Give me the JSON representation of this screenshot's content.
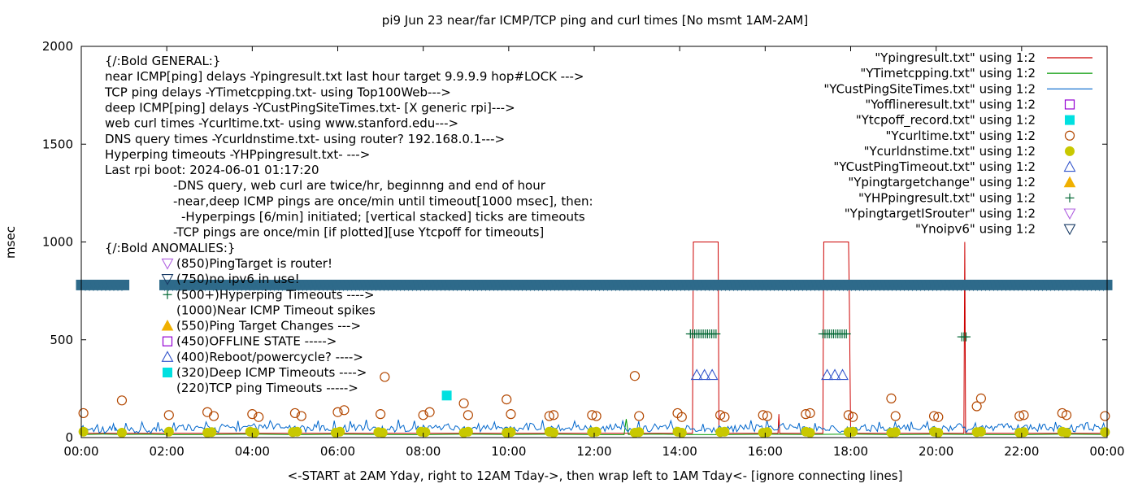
{
  "chart_data": {
    "type": "line",
    "title": "pi9 Jun 23  near/far ICMP/TCP ping and curl times [No msmt 1AM-2AM]",
    "xlabel": "<-START at 2AM Yday, right to 12AM Tday->, then wrap left to 1AM Tday<- [ignore connecting lines]",
    "ylabel": "msec",
    "xlim": [
      0,
      24
    ],
    "ylim": [
      0,
      2000
    ],
    "grid": false,
    "legend_position": "top-right",
    "x_ticks": [
      {
        "v": 0,
        "label": "00:00"
      },
      {
        "v": 2,
        "label": "02:00"
      },
      {
        "v": 4,
        "label": "04:00"
      },
      {
        "v": 6,
        "label": "06:00"
      },
      {
        "v": 8,
        "label": "08:00"
      },
      {
        "v": 10,
        "label": "10:00"
      },
      {
        "v": 12,
        "label": "12:00"
      },
      {
        "v": 14,
        "label": "14:00"
      },
      {
        "v": 16,
        "label": "16:00"
      },
      {
        "v": 18,
        "label": "18:00"
      },
      {
        "v": 20,
        "label": "20:00"
      },
      {
        "v": 22,
        "label": "22:00"
      },
      {
        "v": 24,
        "label": "00:00"
      }
    ],
    "y_ticks": [
      {
        "v": 0,
        "label": "0"
      },
      {
        "v": 500,
        "label": "500"
      },
      {
        "v": 1000,
        "label": "1000"
      },
      {
        "v": 1500,
        "label": "1500"
      },
      {
        "v": 2000,
        "label": "2000"
      }
    ],
    "legend": [
      {
        "label": "\"Ypingresult.txt\" using 1:2",
        "style": "line",
        "color": "#cc0000"
      },
      {
        "label": "\"YTimetcpping.txt\" using 1:2",
        "style": "line",
        "color": "#009900"
      },
      {
        "label": "\"YCustPingSiteTimes.txt\" using 1:2",
        "style": "line",
        "color": "#0066cc"
      },
      {
        "label": "\"Yofflineresult.txt\" using 1:2",
        "style": "open-square",
        "color": "#9400d3"
      },
      {
        "label": "\"Ytcpoff_record.txt\" using 1:2",
        "style": "filled-square",
        "color": "#00e0e0"
      },
      {
        "label": "\"Ycurltime.txt\" using 1:2",
        "style": "open-circle",
        "color": "#b34700"
      },
      {
        "label": "\"Ycurldnstime.txt\" using 1:2",
        "style": "filled-circle",
        "color": "#c8c800"
      },
      {
        "label": "\"YCustPingTimeout.txt\" using 1:2",
        "style": "open-triangle",
        "color": "#3355cc"
      },
      {
        "label": "\"Ypingtargetchange\" using 1:2",
        "style": "filled-triangle",
        "color": "#f0b000"
      },
      {
        "label": "\"YHPpingresult.txt\" using 1:2",
        "style": "plus",
        "color": "#006633"
      },
      {
        "label": "\"YpingtargetISrouter\" using 1:2",
        "style": "open-down-triangle",
        "color": "#b060e0"
      },
      {
        "label": "\"Ynoipv6\" using 1:2",
        "style": "open-down-triangle",
        "color": "#1a3c66"
      }
    ],
    "annotations": [
      "{/:Bold GENERAL:}",
      "near ICMP[ping] delays -Ypingresult.txt last hour target 9.9.9.9 hop#LOCK --->",
      "TCP ping delays -YTimetcpping.txt- using Top100Web--->",
      "deep ICMP[ping] delays -YCustPingSiteTimes.txt- [X generic rpi]--->",
      "web curl times -Ycurltime.txt- using www.stanford.edu--->",
      "DNS query times -Ycurldnstime.txt- using router? 192.168.0.1--->",
      "Hyperping timeouts -YHPpingresult.txt- --->",
      "Last rpi boot: 2024-06-01 01:17:20",
      "-DNS query, web curl are twice/hr, beginnng and end of hour",
      "-near,deep ICMP pings are once/min until timeout[1000 msec], then:",
      "-Hyperpings [6/min] initiated; [vertical stacked] ticks are timeouts",
      "-TCP pings are once/min [if plotted][use Ytcpoff for timeouts]",
      "{/:Bold ANOMALIES:}",
      "(850)PingTarget is router!",
      "(750)no ipv6 in use!",
      "(500+)Hyperping Timeouts ---->",
      "(1000)Near ICMP Timeout spikes",
      "(550)Ping Target Changes --->",
      "(450)OFFLINE STATE ----->",
      "(400)Reboot/powercycle? ---->",
      "(320)Deep ICMP Timeouts ---->",
      "(220)TCP ping Timeouts ----->"
    ],
    "series": [
      {
        "name": "\"Ypingresult.txt\" using 1:2",
        "kind": "line",
        "color": "#cc0000",
        "x": [
          0,
          14.3,
          14.32,
          14.9,
          14.92,
          16.3,
          16.32,
          16.34,
          17.35,
          17.37,
          17.95,
          17.97,
          18.0,
          20.65,
          20.67,
          20.69,
          24
        ],
        "y": [
          22,
          22,
          1000,
          1000,
          22,
          22,
          120,
          22,
          22,
          1000,
          1000,
          700,
          22,
          22,
          1000,
          22,
          22
        ]
      },
      {
        "name": "\"YTimetcpping.txt\" using 1:2",
        "kind": "line",
        "color": "#009900",
        "x": [
          0,
          0.5,
          1.0,
          1.5,
          2.0,
          3.0,
          4.0,
          5.0,
          6.0,
          7.0,
          8.0,
          9.0,
          10.0,
          11.0,
          12.0,
          12.7,
          12.75,
          12.8,
          13.5,
          14.0,
          15.0,
          16.0,
          17.0,
          18.0,
          19.0,
          20.0,
          21.0,
          22.0,
          23.0,
          24.0
        ],
        "y": [
          15,
          18,
          16,
          17,
          15,
          16,
          18,
          15,
          17,
          16,
          15,
          18,
          16,
          17,
          15,
          15,
          95,
          16,
          18,
          16,
          15,
          17,
          16,
          18,
          15,
          17,
          16,
          15,
          18,
          16
        ]
      },
      {
        "name": "\"YCustPingSiteTimes.txt\" using 1:2",
        "kind": "line",
        "color": "#0066cc",
        "x": [
          0,
          0.8,
          0.85,
          1.0,
          2.0,
          2.5,
          3.0,
          3.5,
          4.0,
          4.5,
          5.0,
          5.5,
          6.0,
          6.5,
          7.0,
          7.5,
          8.0,
          8.5,
          9.0,
          9.5,
          10.0,
          10.5,
          11.0,
          11.5,
          12.0,
          12.5,
          13.0,
          13.5,
          14.0,
          15.0,
          15.5,
          16.0,
          16.5,
          17.0,
          18.0,
          18.5,
          19.0,
          19.5,
          20.0,
          20.5,
          21.0,
          21.5,
          22.0,
          22.5,
          23.0,
          23.5,
          24.0
        ],
        "y": [
          45,
          40,
          30,
          30,
          45,
          55,
          40,
          50,
          45,
          55,
          40,
          50,
          45,
          55,
          40,
          50,
          45,
          55,
          40,
          50,
          45,
          55,
          40,
          50,
          45,
          55,
          40,
          50,
          45,
          40,
          50,
          45,
          55,
          40,
          45,
          50,
          40,
          55,
          45,
          50,
          40,
          55,
          45,
          50,
          40,
          55,
          45
        ]
      },
      {
        "name": "\"Ycurltime.txt\" using 1:2",
        "kind": "open-circle",
        "color": "#b34700",
        "x": [
          0.05,
          0.95,
          2.05,
          2.95,
          3.1,
          4.0,
          4.15,
          5.0,
          5.15,
          6.0,
          6.15,
          7.0,
          7.1,
          8.0,
          8.15,
          8.95,
          9.05,
          9.95,
          10.05,
          10.95,
          11.05,
          11.95,
          12.05,
          12.95,
          13.05,
          13.95,
          14.05,
          14.95,
          15.05,
          15.95,
          16.05,
          16.95,
          17.05,
          17.95,
          18.05,
          18.95,
          19.05,
          19.95,
          20.05,
          20.95,
          21.05,
          21.95,
          22.05,
          22.95,
          23.05,
          23.95
        ],
        "y": [
          125,
          190,
          115,
          130,
          110,
          120,
          105,
          125,
          110,
          130,
          140,
          120,
          310,
          115,
          130,
          175,
          115,
          195,
          120,
          110,
          115,
          115,
          110,
          315,
          110,
          125,
          105,
          115,
          105,
          115,
          110,
          120,
          125,
          115,
          105,
          200,
          110,
          110,
          105,
          160,
          200,
          110,
          115,
          125,
          115,
          110
        ]
      },
      {
        "name": "\"Ycurldnstime.txt\" using 1:2",
        "kind": "filled-circle",
        "color": "#c8c800",
        "x": [
          0.05,
          0.95,
          2.05,
          2.95,
          3.05,
          3.95,
          4.05,
          4.95,
          5.05,
          5.95,
          6.05,
          6.95,
          7.05,
          7.95,
          8.05,
          8.95,
          9.05,
          9.95,
          10.05,
          10.95,
          11.05,
          11.95,
          12.05,
          12.95,
          13.05,
          13.95,
          14.05,
          14.95,
          15.05,
          15.95,
          16.05,
          16.95,
          17.05,
          17.95,
          18.05,
          18.95,
          19.05,
          19.95,
          20.05,
          20.95,
          21.05,
          21.95,
          22.05,
          22.95,
          23.05,
          23.95
        ],
        "y": [
          30,
          25,
          30,
          25,
          28,
          30,
          25,
          28,
          30,
          25,
          30,
          28,
          25,
          30,
          28,
          25,
          30,
          25,
          28,
          30,
          25,
          28,
          30,
          25,
          28,
          30,
          25,
          28,
          30,
          25,
          28,
          30,
          25,
          28,
          30,
          25,
          28,
          30,
          25,
          28,
          30,
          25,
          28,
          30,
          25,
          28
        ]
      },
      {
        "name": "\"Ytcpoff_record.txt\" using 1:2",
        "kind": "filled-square",
        "color": "#00e0e0",
        "x": [
          8.55
        ],
        "y": [
          215
        ]
      },
      {
        "name": "\"YCustPingTimeout.txt\" using 1:2",
        "kind": "open-triangle",
        "color": "#3355cc",
        "x": [
          14.4,
          14.58,
          14.76,
          17.45,
          17.63,
          17.81
        ],
        "y": [
          320,
          320,
          320,
          320,
          320,
          320
        ]
      },
      {
        "name": "\"YHPpingresult.txt\" using 1:2",
        "kind": "plus",
        "color": "#006633",
        "x": [
          14.25,
          14.3,
          14.35,
          14.4,
          14.45,
          14.5,
          14.55,
          14.6,
          14.65,
          14.7,
          14.75,
          14.8,
          14.85,
          17.35,
          17.4,
          17.45,
          17.5,
          17.55,
          17.6,
          17.65,
          17.7,
          17.75,
          17.8,
          17.85,
          17.9,
          20.6,
          20.65,
          20.7
        ],
        "y": [
          530,
          530,
          530,
          530,
          530,
          530,
          530,
          530,
          530,
          530,
          530,
          530,
          530,
          530,
          530,
          530,
          530,
          530,
          530,
          530,
          530,
          530,
          530,
          530,
          530,
          515,
          515,
          515
        ]
      },
      {
        "name": "\"Ynoipv6\" using 1:2",
        "kind": "open-down-triangle",
        "color": "#1a3c66",
        "band_y": 780,
        "gap_x": [
          1.0,
          1.95
        ]
      }
    ]
  },
  "colors": {
    "axis": "#000000",
    "frame": "#000000",
    "noipv6_band": "#2e6a8a"
  }
}
